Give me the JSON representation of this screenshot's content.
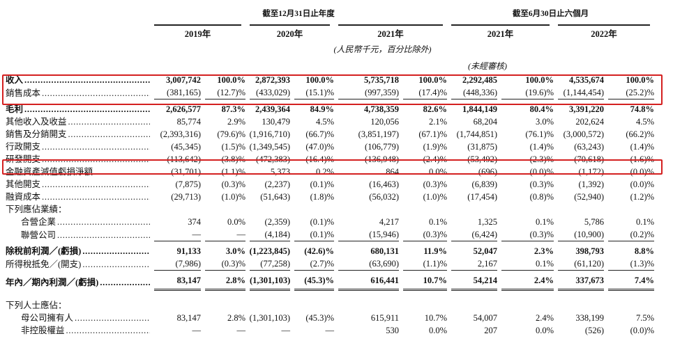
{
  "header": {
    "period_groups": [
      "截至12月31日止年度",
      "截至6月30日止六個月"
    ],
    "years": [
      "2019年",
      "2020年",
      "2021年",
      "2021年",
      "2022年"
    ],
    "unit_note": "(人民幣千元，百分比除外)",
    "unaudited_note": "(未經審核)"
  },
  "rows": [
    {
      "label": "收入",
      "bold": true,
      "values": [
        "3,007,742",
        "100.0%",
        "2,872,393",
        "100.0%",
        "5,735,718",
        "100.0%",
        "2,292,485",
        "100.0%",
        "4,535,674",
        "100.0%"
      ]
    },
    {
      "label": "銷售成本",
      "rule": "single",
      "values": [
        "(381,165)",
        "(12.7)%",
        "(433,029)",
        "(15.1)%",
        "(997,359)",
        "(17.4)%",
        "(448,336)",
        "(19.6)%",
        "(1,144,454)",
        "(25.2)%"
      ]
    },
    {
      "label": "毛利",
      "bold": true,
      "values": [
        "2,626,577",
        "87.3%",
        "2,439,364",
        "84.9%",
        "4,738,359",
        "82.6%",
        "1,844,149",
        "80.4%",
        "3,391,220",
        "74.8%"
      ]
    },
    {
      "label": "其他收入及收益",
      "values": [
        "85,774",
        "2.9%",
        "130,479",
        "4.5%",
        "120,056",
        "2.1%",
        "68,204",
        "3.0%",
        "202,624",
        "4.5%"
      ]
    },
    {
      "label": "銷售及分銷開支",
      "values": [
        "(2,393,316)",
        "(79.6)%",
        "(1,916,710)",
        "(66.7)%",
        "(3,851,197)",
        "(67.1)%",
        "(1,744,851)",
        "(76.1)%",
        "(3,000,572)",
        "(66.2)%"
      ]
    },
    {
      "label": "行政開支",
      "values": [
        "(45,345)",
        "(1.5)%",
        "(1,349,545)",
        "(47.0)%",
        "(106,779)",
        "(1.9)%",
        "(31,875)",
        "(1.4)%",
        "(63,243)",
        "(1.4)%"
      ]
    },
    {
      "label": "研發開支",
      "values": [
        "(113,642)",
        "(3.8)%",
        "(472,383)",
        "(16.4)%",
        "(136,948)",
        "(2.4)%",
        "(53,492)",
        "(2.3)%",
        "(70,618)",
        "(1.6)%"
      ]
    },
    {
      "label": "金融資產減值虧損淨額",
      "values": [
        "(31,701)",
        "(1.1)%",
        "5,373",
        "0.2%",
        "864",
        "0.0%",
        "(696)",
        "(0.0)%",
        "(1,172)",
        "(0.0)%"
      ]
    },
    {
      "label": "其他開支",
      "values": [
        "(7,875)",
        "(0.3)%",
        "(2,237)",
        "(0.1)%",
        "(16,463)",
        "(0.3)%",
        "(6,839)",
        "(0.3)%",
        "(1,392)",
        "(0.0)%"
      ]
    },
    {
      "label": "融資成本",
      "values": [
        "(29,713)",
        "(1.0)%",
        "(51,643)",
        "(1.8)%",
        "(56,032)",
        "(1.0)%",
        "(17,454)",
        "(0.8)%",
        "(52,940)",
        "(1.2)%"
      ]
    },
    {
      "label": "下列應佔業績："
    },
    {
      "label": "合營企業",
      "indent": true,
      "values": [
        "374",
        "0.0%",
        "(2,359)",
        "(0.1)%",
        "4,217",
        "0.1%",
        "1,325",
        "0.1%",
        "5,786",
        "0.1%"
      ]
    },
    {
      "label": "聯營公司",
      "indent": true,
      "rule": "single",
      "values": [
        "—",
        "—",
        "(4,184)",
        "(0.1)%",
        "(15,946)",
        "(0.3)%",
        "(6,424)",
        "(0.3)%",
        "(10,900)",
        "(0.2)%"
      ]
    },
    {
      "label": "除稅前利潤／(虧損)",
      "bold": true,
      "values": [
        "91,133",
        "3.0%",
        "(1,223,845)",
        "(42.6)%",
        "680,131",
        "11.9%",
        "52,047",
        "2.3%",
        "398,793",
        "8.8%"
      ]
    },
    {
      "label": "所得稅抵免／(開支)",
      "rule": "single",
      "values": [
        "(7,986)",
        "(0.3)%",
        "(77,258)",
        "(2.7)%",
        "(63,690)",
        "(1.1)%",
        "2,167",
        "0.1%",
        "(61,120)",
        "(1.3)%"
      ]
    },
    {
      "label": "年內／期內利潤／(虧損)",
      "bold": true,
      "rule": "double",
      "values": [
        "83,147",
        "2.8%",
        "(1,301,103)",
        "(45.3)%",
        "616,441",
        "10.7%",
        "54,214",
        "2.4%",
        "337,673",
        "7.4%"
      ]
    },
    {
      "label": "下列人士應佔："
    },
    {
      "label": "母公司擁有人",
      "indent": true,
      "values": [
        "83,147",
        "2.8%",
        "(1,301,103)",
        "(45.3)%",
        "615,911",
        "10.7%",
        "54,007",
        "2.4%",
        "338,199",
        "7.5%"
      ]
    },
    {
      "label": "非控股權益",
      "indent": true,
      "values": [
        "—",
        "—",
        "—",
        "—",
        "530",
        "0.0%",
        "207",
        "0.0%",
        "(526)",
        "(0.0)%"
      ]
    }
  ]
}
